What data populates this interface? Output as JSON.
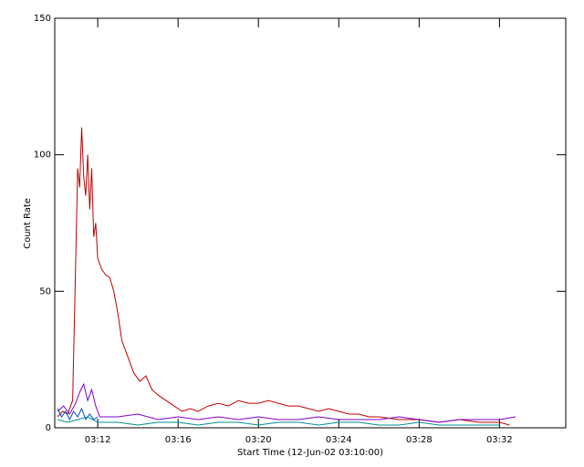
{
  "chart_data": {
    "type": "line",
    "x_label": "Start Time (12-Jun-02 03:10:00)",
    "y_label": "Count Rate",
    "xlim": [
      -0.14,
      25.3
    ],
    "ylim": [
      0,
      150
    ],
    "xticks": [
      {
        "value": 2,
        "label": "03:12"
      },
      {
        "value": 6,
        "label": "03:16"
      },
      {
        "value": 10,
        "label": "03:20"
      },
      {
        "value": 14,
        "label": "03:24"
      },
      {
        "value": 18,
        "label": "03:28"
      },
      {
        "value": 22,
        "label": "03:32"
      }
    ],
    "yticks": [
      0,
      50,
      100,
      150
    ],
    "grid": false,
    "series": [
      {
        "color": "#c00000",
        "x": [
          0,
          0.25,
          0.5,
          0.75,
          0.9,
          1.0,
          1.1,
          1.2,
          1.3,
          1.4,
          1.5,
          1.6,
          1.7,
          1.8,
          1.9,
          2.0,
          2.2,
          2.4,
          2.6,
          2.8,
          3.0,
          3.2,
          3.5,
          3.8,
          4.1,
          4.4,
          4.7,
          5.0,
          5.4,
          5.8,
          6.2,
          6.6,
          7.0,
          7.5,
          8.0,
          8.5,
          9.0,
          9.5,
          10,
          10.5,
          11,
          11.5,
          12,
          12.5,
          13,
          13.5,
          14,
          14.5,
          15,
          15.5,
          16,
          17,
          18,
          19,
          20,
          21,
          22,
          22.5
        ],
        "values": [
          4,
          6,
          5,
          10,
          60,
          95,
          88,
          110,
          92,
          85,
          100,
          80,
          95,
          70,
          75,
          62,
          58,
          56,
          55,
          50,
          42,
          32,
          26,
          20,
          17,
          19,
          14,
          12,
          10,
          8,
          6,
          7,
          6,
          8,
          9,
          8,
          10,
          9,
          9,
          10,
          9,
          8,
          8,
          7,
          6,
          7,
          6,
          5,
          5,
          4,
          4,
          3,
          3,
          2,
          3,
          2,
          2,
          1
        ]
      },
      {
        "color": "#7f00cc",
        "x": [
          0,
          0.3,
          0.6,
          0.9,
          1.1,
          1.3,
          1.5,
          1.7,
          1.9,
          2.1,
          3,
          4,
          5,
          6,
          7,
          8,
          9,
          10,
          11,
          12,
          13,
          14,
          15,
          16,
          17,
          18,
          19,
          20,
          21,
          22,
          22.8
        ],
        "values": [
          6,
          8,
          5,
          9,
          13,
          16,
          10,
          14,
          8,
          4,
          4,
          5,
          3,
          4,
          3,
          4,
          3,
          4,
          3,
          3,
          4,
          3,
          3,
          3,
          4,
          3,
          2,
          3,
          3,
          3,
          4
        ]
      },
      {
        "color": "#0050c8",
        "x": [
          0,
          0.2,
          0.4,
          0.6,
          0.8,
          1.0,
          1.2,
          1.4,
          1.6,
          1.8,
          2.0
        ],
        "values": [
          7,
          4,
          6,
          3,
          6,
          4,
          7,
          3,
          5,
          3,
          4
        ]
      },
      {
        "color": "#009090",
        "x": [
          0,
          0.5,
          1,
          1.5,
          2,
          3,
          4,
          5,
          6,
          7,
          8,
          9,
          10,
          11,
          12,
          13,
          14,
          15,
          16,
          17,
          18,
          19,
          20,
          21,
          22
        ],
        "values": [
          3,
          2,
          3,
          4,
          2,
          2,
          1,
          2,
          2,
          1,
          2,
          2,
          1,
          2,
          2,
          1,
          2,
          2,
          1,
          1,
          2,
          1,
          1,
          1,
          1
        ]
      }
    ]
  }
}
